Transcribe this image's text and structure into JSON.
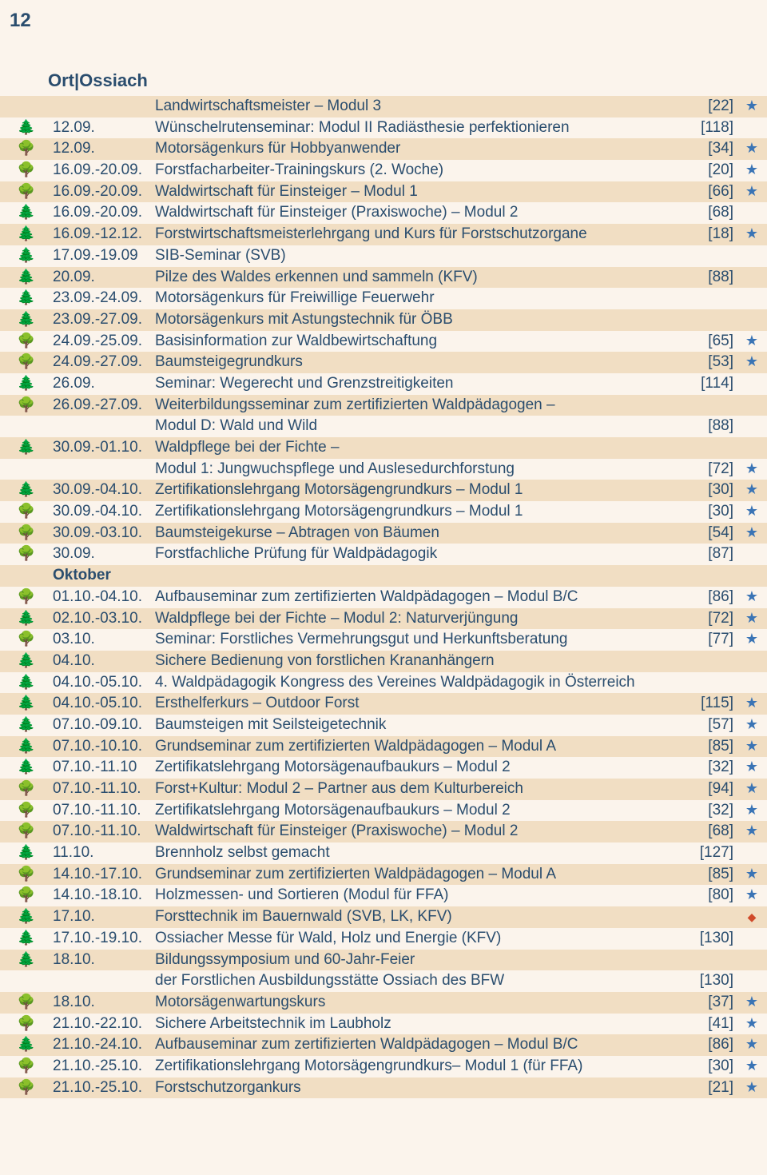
{
  "page_number": "12",
  "header": "Ort|Ossiach",
  "colors": {
    "text": "#2a4d6e",
    "row_alt_a": "#f1dec3",
    "row_alt_b": "#fbf4ec",
    "star": "#3a74b5",
    "diamond": "#d04a2a",
    "background": "#fbf4ec"
  },
  "icons": {
    "conifer": "🌲",
    "deciduous": "🌳",
    "star": "★",
    "diamond": "◆"
  },
  "rows": [
    {
      "date": "",
      "title": "Landwirtschaftsmeister – Modul 3",
      "ref": "[22]",
      "star": true,
      "icon": ""
    },
    {
      "date": "12.09.",
      "title": "Wünschelrutenseminar: Modul II Radiästhesie perfektionieren",
      "ref": "[118]",
      "star": false,
      "icon": "conifer"
    },
    {
      "date": "12.09.",
      "title": "Motorsägenkurs für Hobbyanwender",
      "ref": "[34]",
      "star": true,
      "icon": "deciduous"
    },
    {
      "date": "16.09.-20.09.",
      "title": "Forstfacharbeiter-Trainingskurs (2. Woche)",
      "ref": "[20]",
      "star": true,
      "icon": "deciduous"
    },
    {
      "date": "16.09.-20.09.",
      "title": "Waldwirtschaft für Einsteiger – Modul 1",
      "ref": "[66]",
      "star": true,
      "icon": "deciduous"
    },
    {
      "date": "16.09.-20.09.",
      "title": "Waldwirtschaft für Einsteiger (Praxiswoche) – Modul 2",
      "ref": "[68]",
      "star": false,
      "icon": "conifer"
    },
    {
      "date": "16.09.-12.12.",
      "title": "Forstwirtschaftsmeisterlehrgang und Kurs für Forstschutzorgane",
      "ref": "[18]",
      "star": true,
      "icon": "conifer"
    },
    {
      "date": "17.09.-19.09",
      "title": "SIB-Seminar (SVB)",
      "ref": "",
      "star": false,
      "icon": "conifer"
    },
    {
      "date": "20.09.",
      "title": "Pilze des Waldes erkennen und sammeln (KFV)",
      "ref": "[88]",
      "star": false,
      "icon": "conifer"
    },
    {
      "date": "23.09.-24.09.",
      "title": "Motorsägenkurs für Freiwillige Feuerwehr",
      "ref": "",
      "star": false,
      "icon": "conifer"
    },
    {
      "date": "23.09.-27.09.",
      "title": "Motorsägenkurs mit Astungstechnik für ÖBB",
      "ref": "",
      "star": false,
      "icon": "conifer"
    },
    {
      "date": "24.09.-25.09.",
      "title": "Basisinformation zur Waldbewirtschaftung",
      "ref": "[65]",
      "star": true,
      "icon": "deciduous"
    },
    {
      "date": "24.09.-27.09.",
      "title": "Baumsteigegrundkurs",
      "ref": "[53]",
      "star": true,
      "icon": "deciduous"
    },
    {
      "date": "26.09.",
      "title": "Seminar: Wegerecht und Grenzstreitigkeiten",
      "ref": "[114]",
      "star": false,
      "icon": "conifer"
    },
    {
      "date": "26.09.-27.09.",
      "title": "Weiterbildungsseminar zum zertifizierten Waldpädagogen –",
      "ref": "",
      "star": false,
      "icon": "deciduous"
    },
    {
      "date": "",
      "title": "Modul D: Wald und Wild",
      "ref": "[88]",
      "star": false,
      "icon": ""
    },
    {
      "date": "30.09.-01.10.",
      "title": "Waldpflege bei der Fichte –",
      "ref": "",
      "star": false,
      "icon": "conifer"
    },
    {
      "date": "",
      "title": "Modul 1: Jungwuchspflege und Auslesedurchforstung",
      "ref": "[72]",
      "star": true,
      "icon": ""
    },
    {
      "date": "30.09.-04.10.",
      "title": "Zertifikationslehrgang Motorsägengrundkurs – Modul 1",
      "ref": "[30]",
      "star": true,
      "icon": "conifer"
    },
    {
      "date": "30.09.-04.10.",
      "title": "Zertifikationslehrgang Motorsägengrundkurs – Modul 1",
      "ref": "[30]",
      "star": true,
      "icon": "deciduous"
    },
    {
      "date": "30.09.-03.10.",
      "title": "Baumsteigekurse – Abtragen von Bäumen",
      "ref": "[54]",
      "star": true,
      "icon": "deciduous"
    },
    {
      "date": "30.09.",
      "title": "Forstfachliche Prüfung für Waldpädagogik",
      "ref": "[87]",
      "star": false,
      "icon": "deciduous"
    },
    {
      "date": "Oktober",
      "title": "",
      "ref": "",
      "star": false,
      "icon": "",
      "month": true
    },
    {
      "date": "01.10.-04.10.",
      "title": "Aufbauseminar zum zertifizierten Waldpädagogen – Modul B/C",
      "ref": "[86]",
      "star": true,
      "icon": "deciduous"
    },
    {
      "date": "02.10.-03.10.",
      "title": "Waldpflege bei der Fichte – Modul 2: Naturverjüngung",
      "ref": "[72]",
      "star": true,
      "icon": "conifer"
    },
    {
      "date": "03.10.",
      "title": "Seminar: Forstliches Vermehrungsgut und Herkunftsberatung",
      "ref": "[77]",
      "star": true,
      "icon": "deciduous"
    },
    {
      "date": "04.10.",
      "title": "Sichere Bedienung von forstlichen Krananhängern",
      "ref": "",
      "star": false,
      "icon": "conifer"
    },
    {
      "date": "04.10.-05.10.",
      "title": "4. Waldpädagogik Kongress des Vereines Waldpädagogik in Österreich",
      "ref": "",
      "star": false,
      "icon": "conifer"
    },
    {
      "date": "04.10.-05.10.",
      "title": "Ersthelferkurs – Outdoor Forst",
      "ref": "[115]",
      "star": true,
      "icon": "conifer"
    },
    {
      "date": "07.10.-09.10.",
      "title": "Baumsteigen mit Seilsteigetechnik",
      "ref": "[57]",
      "star": true,
      "icon": "conifer"
    },
    {
      "date": "07.10.-10.10.",
      "title": "Grundseminar zum zertifizierten Waldpädagogen – Modul A",
      "ref": "[85]",
      "star": true,
      "icon": "conifer"
    },
    {
      "date": "07.10.-11.10",
      "title": "Zertifikatslehrgang Motorsägenaufbaukurs – Modul 2",
      "ref": "[32]",
      "star": true,
      "icon": "conifer"
    },
    {
      "date": "07.10.-11.10.",
      "title": "Forst+Kultur: Modul 2 – Partner aus dem Kulturbereich",
      "ref": "[94]",
      "star": true,
      "icon": "deciduous"
    },
    {
      "date": "07.10.-11.10.",
      "title": "Zertifikatslehrgang Motorsägenaufbaukurs – Modul 2",
      "ref": "[32]",
      "star": true,
      "icon": "deciduous"
    },
    {
      "date": "07.10.-11.10.",
      "title": "Waldwirtschaft für Einsteiger (Praxiswoche) – Modul 2",
      "ref": "[68]",
      "star": true,
      "icon": "deciduous"
    },
    {
      "date": "11.10.",
      "title": "Brennholz selbst gemacht",
      "ref": "[127]",
      "star": false,
      "icon": "conifer"
    },
    {
      "date": "14.10.-17.10.",
      "title": "Grundseminar zum zertifizierten Waldpädagogen – Modul A",
      "ref": "[85]",
      "star": true,
      "icon": "deciduous"
    },
    {
      "date": "14.10.-18.10.",
      "title": "Holzmessen- und Sortieren (Modul für FFA)",
      "ref": "[80]",
      "star": true,
      "icon": "deciduous"
    },
    {
      "date": "17.10.",
      "title": "Forsttechnik im Bauernwald (SVB, LK, KFV)",
      "ref": "",
      "star": false,
      "icon": "conifer",
      "diamond": true
    },
    {
      "date": "17.10.-19.10.",
      "title": "Ossiacher Messe für Wald, Holz und Energie (KFV)",
      "ref": "[130]",
      "star": false,
      "icon": "conifer"
    },
    {
      "date": "18.10.",
      "title": "Bildungssymposium und 60-Jahr-Feier",
      "ref": "",
      "star": false,
      "icon": "conifer"
    },
    {
      "date": "",
      "title": "der Forstlichen Ausbildungsstätte Ossiach des BFW",
      "ref": "[130]",
      "star": false,
      "icon": ""
    },
    {
      "date": "18.10.",
      "title": "Motorsägenwartungskurs",
      "ref": "[37]",
      "star": true,
      "icon": "deciduous"
    },
    {
      "date": "21.10.-22.10.",
      "title": "Sichere Arbeitstechnik im Laubholz",
      "ref": "[41]",
      "star": true,
      "icon": "deciduous"
    },
    {
      "date": "21.10.-24.10.",
      "title": "Aufbauseminar zum zertifizierten Waldpädagogen – Modul B/C",
      "ref": "[86]",
      "star": true,
      "icon": "conifer"
    },
    {
      "date": "21.10.-25.10.",
      "title": "Zertifikationslehrgang Motorsägengrundkurs– Modul 1 (für FFA)",
      "ref": "[30]",
      "star": true,
      "icon": "deciduous"
    },
    {
      "date": "21.10.-25.10.",
      "title": "Forstschutzorgankurs",
      "ref": "[21]",
      "star": true,
      "icon": "deciduous"
    }
  ]
}
